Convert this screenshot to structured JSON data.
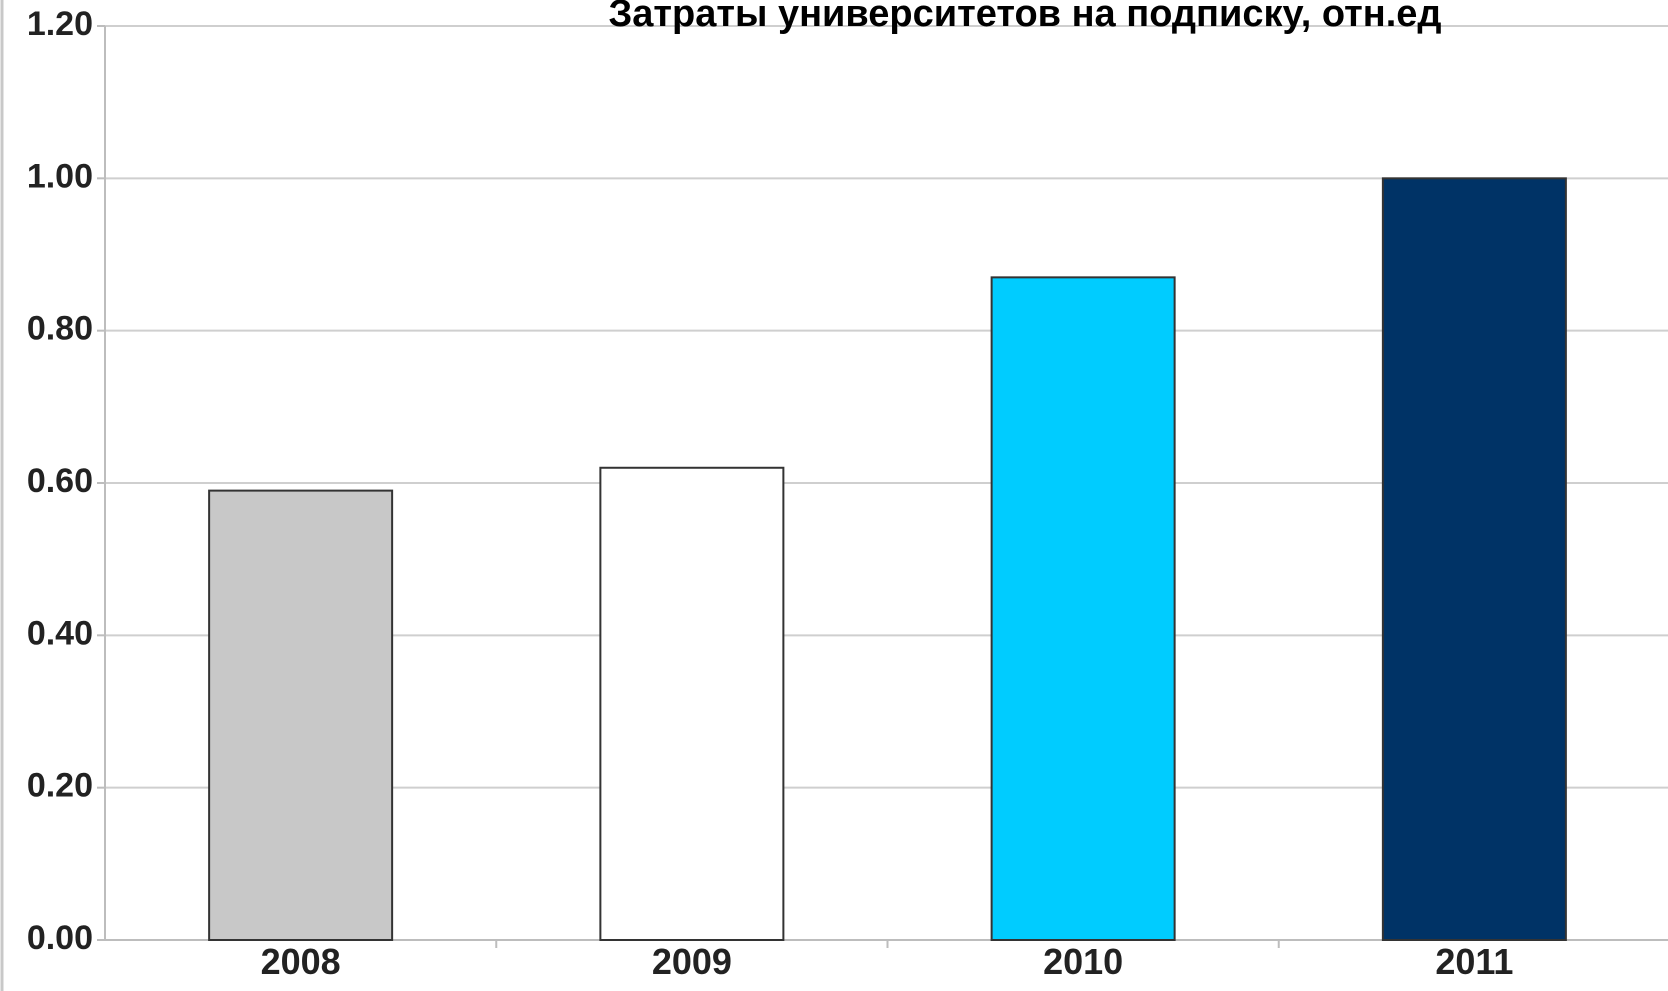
{
  "chart_data": {
    "type": "bar",
    "title": "Затраты университетов на подписку, отн.ед",
    "xlabel": "",
    "ylabel": "",
    "categories": [
      "2008",
      "2009",
      "2010",
      "2011"
    ],
    "values": [
      0.59,
      0.62,
      0.87,
      1.0
    ],
    "bar_colors": [
      "#c8c8c8",
      "#ffffff",
      "#00ccff",
      "#003366"
    ],
    "ylim": [
      0,
      1.2
    ],
    "yticks": [
      "0.00",
      "0.20",
      "0.40",
      "0.60",
      "0.80",
      "1.00",
      "1.20"
    ],
    "grid": true,
    "legend": "none"
  }
}
